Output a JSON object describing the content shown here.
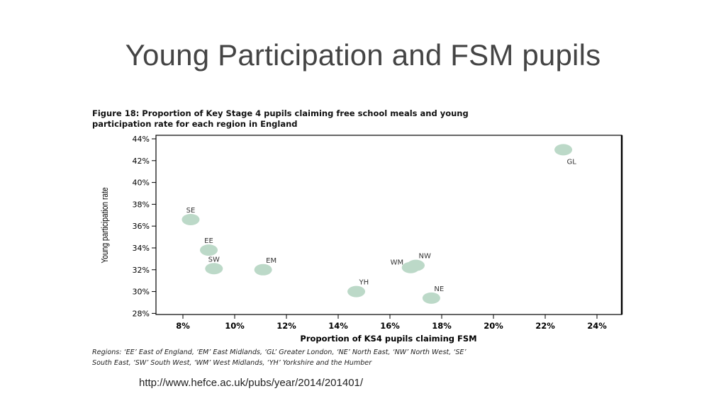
{
  "slide": {
    "title": "Young Participation and FSM pupils",
    "source_url": "http://www.hefce.ac.uk/pubs/year/2014/201401/"
  },
  "figure": {
    "caption_line1": "Figure 18: Proportion of Key Stage 4 pupils claiming free school meals and young",
    "caption_line2": "participation rate for each region in England",
    "regions_note_line1": "Regions: ‘EE’ East of England, ‘EM’ East Midlands, ‘GL’ Greater London, ‘NE’ North East, ‘NW’ North West, ‘SE’",
    "regions_note_line2": "South East, ‘SW’ South West, ‘WM’ West Midlands, ‘YH’ Yorkshire and the Humber"
  },
  "chart_data": {
    "type": "scatter",
    "xlabel": "Proportion of KS4 pupils claiming FSM",
    "ylabel": "Young participation rate",
    "xlim": [
      7,
      25
    ],
    "ylim": [
      28,
      44
    ],
    "x_ticks": [
      8,
      10,
      12,
      14,
      16,
      18,
      20,
      22,
      24
    ],
    "y_ticks": [
      28,
      30,
      32,
      34,
      36,
      38,
      40,
      42,
      44
    ],
    "x_tick_labels": [
      "8%",
      "10%",
      "12%",
      "14%",
      "16%",
      "18%",
      "20%",
      "22%",
      "24%"
    ],
    "y_tick_labels": [
      "28%",
      "30%",
      "32%",
      "34%",
      "36%",
      "38%",
      "40%",
      "42%",
      "44%"
    ],
    "marker_color": "#bcd9c8",
    "points": [
      {
        "label": "SE",
        "x": 8.3,
        "y": 36.6,
        "label_pos": "above"
      },
      {
        "label": "EE",
        "x": 9.0,
        "y": 33.8,
        "label_pos": "above"
      },
      {
        "label": "SW",
        "x": 9.2,
        "y": 32.1,
        "label_pos": "above"
      },
      {
        "label": "EM",
        "x": 11.1,
        "y": 32.0,
        "label_pos": "above-right"
      },
      {
        "label": "YH",
        "x": 14.7,
        "y": 30.0,
        "label_pos": "above-right"
      },
      {
        "label": "WM",
        "x": 16.8,
        "y": 32.2,
        "label_pos": "above-left"
      },
      {
        "label": "NW",
        "x": 17.0,
        "y": 32.4,
        "label_pos": "above-right"
      },
      {
        "label": "NE",
        "x": 17.6,
        "y": 29.4,
        "label_pos": "above-right"
      },
      {
        "label": "GL",
        "x": 22.7,
        "y": 43.0,
        "label_pos": "below-right"
      }
    ],
    "grid": false,
    "legend": "none"
  }
}
